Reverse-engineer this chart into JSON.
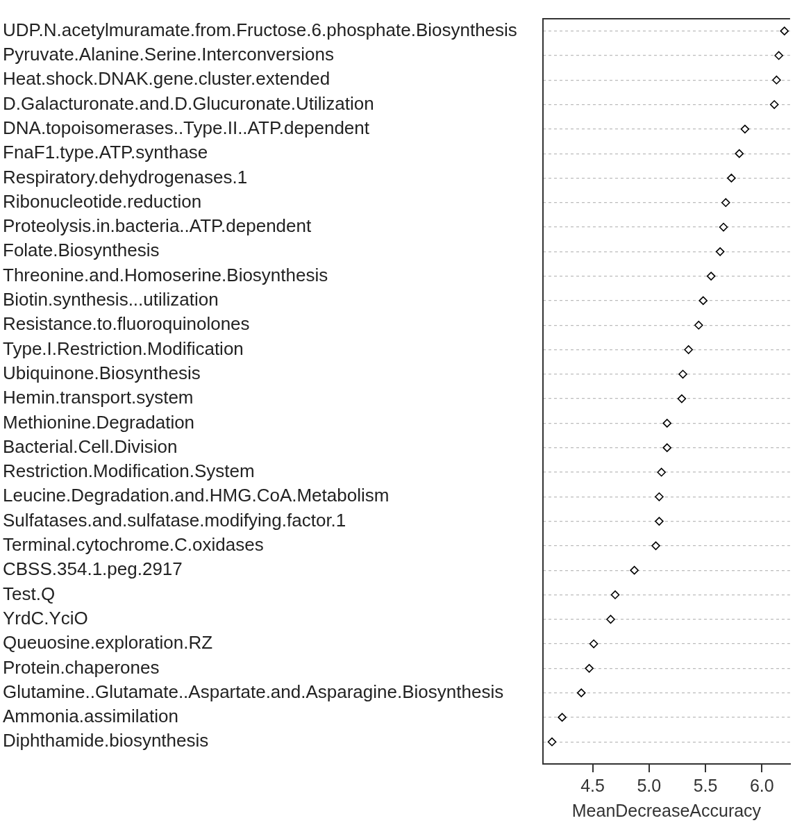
{
  "chart_data": {
    "type": "scatter",
    "xlabel": "MeanDecreaseAccuracy",
    "categories": [
      "UDP.N.acetylmuramate.from.Fructose.6.phosphate.Biosynthesis",
      "Pyruvate.Alanine.Serine.Interconversions",
      "Heat.shock.DNAK.gene.cluster.extended",
      "D.Galacturonate.and.D.Glucuronate.Utilization",
      "DNA.topoisomerases..Type.II..ATP.dependent",
      "FnaF1.type.ATP.synthase",
      "Respiratory.dehydrogenases.1",
      "Ribonucleotide.reduction",
      "Proteolysis.in.bacteria..ATP.dependent",
      "Folate.Biosynthesis",
      "Threonine.and.Homoserine.Biosynthesis",
      "Biotin.synthesis...utilization",
      "Resistance.to.fluoroquinolones",
      "Type.I.Restriction.Modification",
      "Ubiquinone.Biosynthesis",
      "Hemin.transport.system",
      "Methionine.Degradation",
      "Bacterial.Cell.Division",
      "Restriction.Modification.System",
      "Leucine.Degradation.and.HMG.CoA.Metabolism",
      "Sulfatases.and.sulfatase.modifying.factor.1",
      "Terminal.cytochrome.C.oxidases",
      "CBSS.354.1.peg.2917",
      "Test.Q",
      "YrdC.YciO",
      "Queuosine.exploration.RZ",
      "Protein.chaperones",
      "Glutamine..Glutamate..Aspartate.and.Asparagine.Biosynthesis",
      "Ammonia.assimilation",
      "Diphthamide.biosynthesis"
    ],
    "values": [
      6.2,
      6.15,
      6.13,
      6.11,
      5.85,
      5.8,
      5.73,
      5.68,
      5.66,
      5.63,
      5.55,
      5.48,
      5.44,
      5.35,
      5.3,
      5.29,
      5.16,
      5.16,
      5.11,
      5.09,
      5.09,
      5.06,
      4.87,
      4.7,
      4.66,
      4.51,
      4.47,
      4.4,
      4.23,
      4.14
    ],
    "color": "#000000",
    "marker": "diamond",
    "grid": "y",
    "orientation": "horizontal",
    "xlim": [
      4.06,
      6.25
    ],
    "xticks": [
      {
        "value": 4.5,
        "label": "4.5"
      },
      {
        "value": 5,
        "label": "5.0"
      },
      {
        "value": 5.5,
        "label": "5.5"
      },
      {
        "value": 6,
        "label": "6.0"
      }
    ]
  }
}
